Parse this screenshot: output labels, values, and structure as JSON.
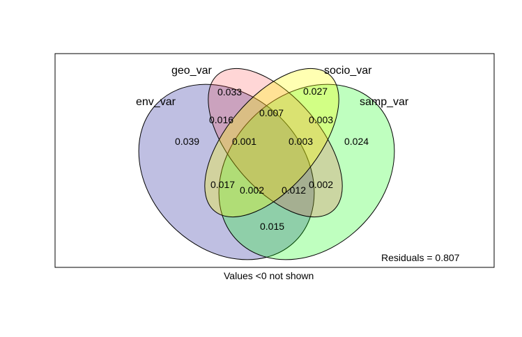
{
  "sets": [
    {
      "name": "env_var",
      "color": "#00008b",
      "opacity": 0.25
    },
    {
      "name": "geo_var",
      "color": "#ff3030",
      "opacity": 0.2
    },
    {
      "name": "socio_var",
      "color": "#ffff00",
      "opacity": 0.3
    },
    {
      "name": "samp_var",
      "color": "#00ff00",
      "opacity": 0.25
    }
  ],
  "regions": [
    {
      "id": "geo-only",
      "value": "0.033"
    },
    {
      "id": "socio-only",
      "value": "0.027"
    },
    {
      "id": "env-geo",
      "value": "0.016"
    },
    {
      "id": "geo-socio",
      "value": "0.007"
    },
    {
      "id": "socio-samp",
      "value": "0.003"
    },
    {
      "id": "env-only",
      "value": "0.039"
    },
    {
      "id": "env-geo-socio",
      "value": "0.001"
    },
    {
      "id": "geo-socio-samp",
      "value": "0.003"
    },
    {
      "id": "samp-only",
      "value": "0.024"
    },
    {
      "id": "env-socio",
      "value": "0.017"
    },
    {
      "id": "env-socio-samp",
      "value": "0.002"
    },
    {
      "id": "env-geo-samp",
      "value": "0.012"
    },
    {
      "id": "geo-samp",
      "value": "0.002"
    },
    {
      "id": "env-samp",
      "value": "0.015"
    }
  ],
  "residuals": "Residuals = 0.807",
  "footnote": "Values <0 not shown"
}
